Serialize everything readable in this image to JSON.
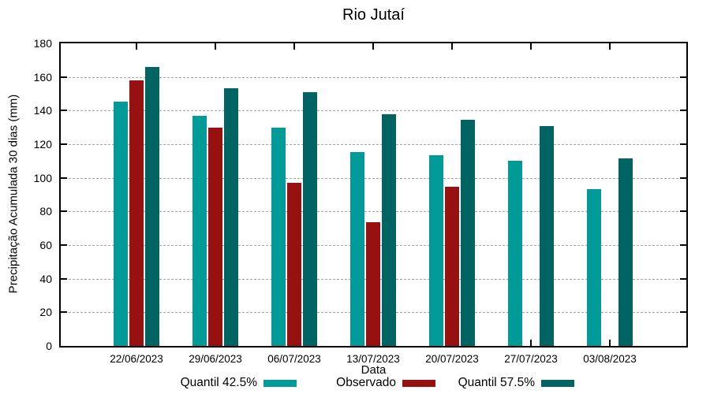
{
  "chart_data": {
    "type": "bar",
    "title": "Rio Jutaí",
    "xlabel": "Data",
    "ylabel": "Precipitação Acumulada 30 dias (mm)",
    "categories": [
      "22/06/2023",
      "29/06/2023",
      "06/07/2023",
      "13/07/2023",
      "20/07/2023",
      "27/07/2023",
      "03/08/2023"
    ],
    "series": [
      {
        "name": "Quantil 42.5%",
        "color": "#009b99",
        "values": [
          145.5,
          137,
          130,
          115.5,
          113.5,
          110,
          93.5
        ]
      },
      {
        "name": "Observado",
        "color": "#971111",
        "values": [
          158,
          130,
          97,
          73.5,
          94.5,
          null,
          null
        ]
      },
      {
        "name": "Quantil 57.5%",
        "color": "#006462",
        "values": [
          166,
          153.5,
          151,
          138,
          134.5,
          131,
          111.5
        ]
      }
    ],
    "ylim": [
      0,
      180
    ],
    "ytick_step": 20,
    "grid": true,
    "grid_color": "#a9a9a9",
    "frame_color": "#000000",
    "legend_position": "bottom"
  }
}
